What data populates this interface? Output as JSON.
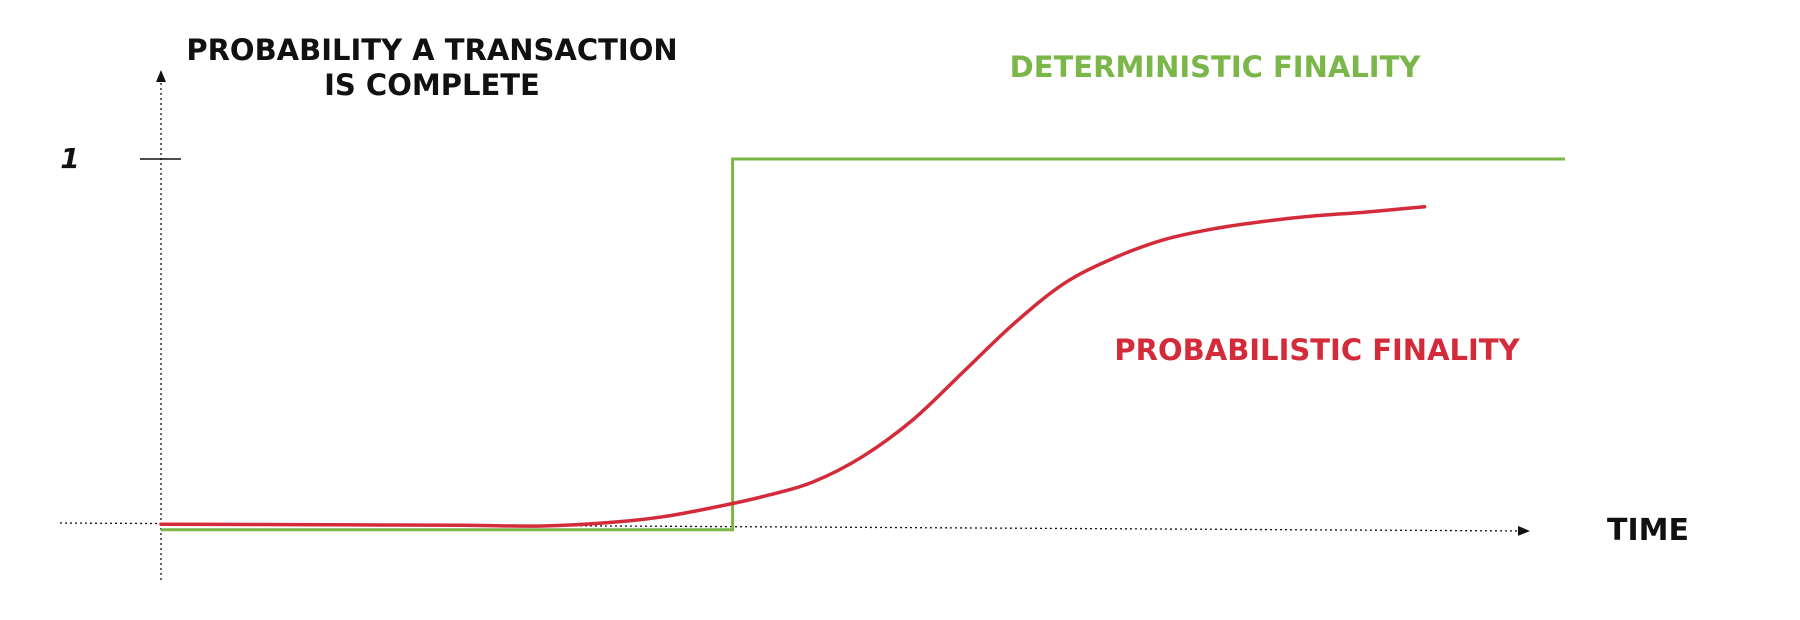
{
  "chart_data": {
    "type": "line",
    "ylabel_lines": [
      "PROBABILITY A TRANSACTION",
      "IS COMPLETE"
    ],
    "xlabel": "TIME",
    "yticks": [
      {
        "value": 1,
        "label": "1"
      }
    ],
    "xlim": [
      0,
      14
    ],
    "ylim": [
      0,
      1
    ],
    "grid": false,
    "legend": "none",
    "series": [
      {
        "name": "DETERMINISTIC FINALITY",
        "color": "#7ab648",
        "points": [
          [
            0,
            -0.01
          ],
          [
            5.7,
            -0.01
          ],
          [
            5.7,
            1.0
          ],
          [
            14.0,
            1.0
          ]
        ]
      },
      {
        "name": "PROBABILISTIC FINALITY",
        "color": "#d42b3a",
        "points": [
          [
            0,
            0.005
          ],
          [
            1,
            0.004
          ],
          [
            2,
            0.003
          ],
          [
            3,
            0.002
          ],
          [
            3.8,
            0.0
          ],
          [
            4.5,
            0.01
          ],
          [
            5.0,
            0.025
          ],
          [
            5.5,
            0.05
          ],
          [
            6.0,
            0.08
          ],
          [
            6.5,
            0.12
          ],
          [
            7.0,
            0.19
          ],
          [
            7.5,
            0.29
          ],
          [
            8.0,
            0.42
          ],
          [
            8.5,
            0.55
          ],
          [
            9.0,
            0.66
          ],
          [
            9.5,
            0.73
          ],
          [
            10.0,
            0.78
          ],
          [
            10.5,
            0.81
          ],
          [
            11.0,
            0.83
          ],
          [
            11.5,
            0.845
          ],
          [
            12.0,
            0.855
          ],
          [
            12.6,
            0.87
          ]
        ]
      }
    ]
  }
}
